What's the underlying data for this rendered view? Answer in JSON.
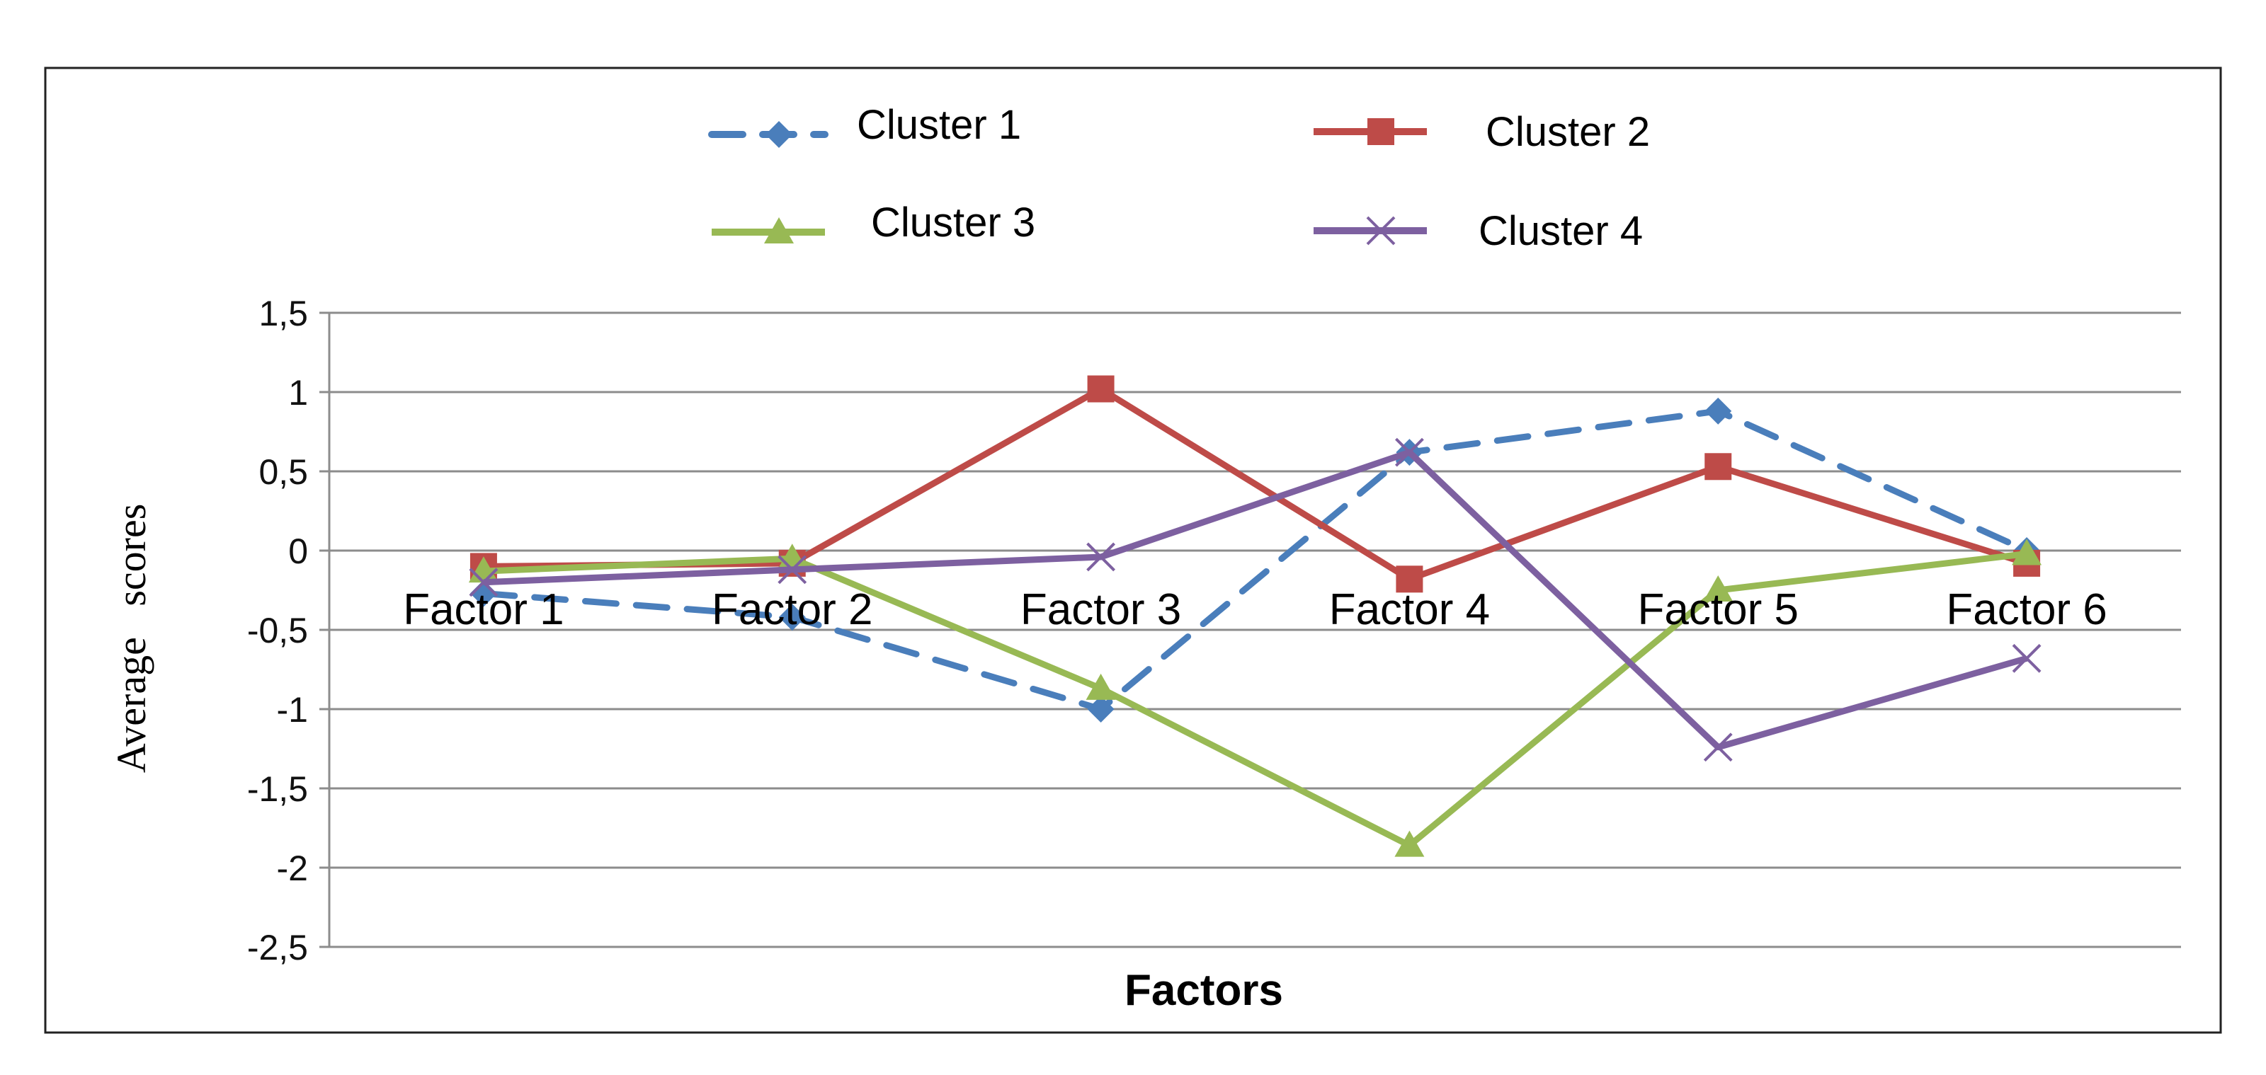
{
  "chart_data": {
    "type": "line",
    "title": "",
    "xlabel": "Factors",
    "ylabel": "Average   scores",
    "categories": [
      "Factor 1",
      "Factor 2",
      "Factor 3",
      "Factor 4",
      "Factor 5",
      "Factor 6"
    ],
    "ylim": [
      -2.5,
      1.5
    ],
    "yticks": [
      1.5,
      1,
      0.5,
      0,
      -0.5,
      -1,
      -1.5,
      -2,
      -2.5
    ],
    "ytick_labels": [
      "1,5",
      "1",
      "0,5",
      "0",
      "-0,5",
      "-1",
      "-1,5",
      "-2",
      "-2,5"
    ],
    "grid": true,
    "legend_position": "top",
    "series": [
      {
        "name": "Cluster 1",
        "values": [
          -0.27,
          -0.42,
          -1.0,
          0.62,
          0.88,
          0.0
        ],
        "color": "#4A7EBB",
        "dash": true,
        "marker": "diamond"
      },
      {
        "name": "Cluster 2",
        "values": [
          -0.1,
          -0.08,
          1.02,
          -0.18,
          0.53,
          -0.08
        ],
        "color": "#BE4B48",
        "dash": false,
        "marker": "square"
      },
      {
        "name": "Cluster 3",
        "values": [
          -0.13,
          -0.05,
          -0.87,
          -1.86,
          -0.25,
          -0.02
        ],
        "color": "#98B954",
        "dash": false,
        "marker": "triangle"
      },
      {
        "name": "Cluster 4",
        "values": [
          -0.2,
          -0.12,
          -0.04,
          0.62,
          -1.24,
          -0.68
        ],
        "color": "#7D60A0",
        "dash": false,
        "marker": "x"
      }
    ]
  }
}
